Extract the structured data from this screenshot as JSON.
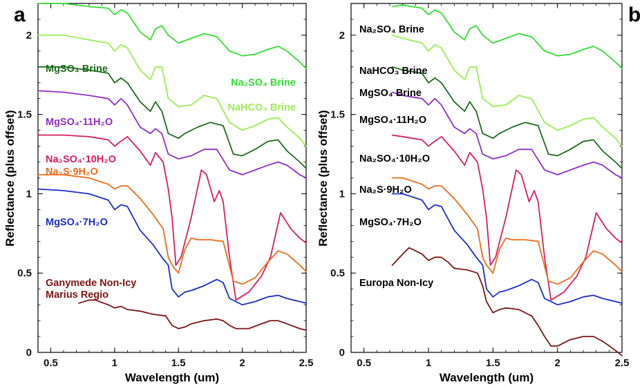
{
  "figure": {
    "panels": [
      "a",
      "b"
    ]
  },
  "chart_data": [
    {
      "type": "line",
      "panel_label": "a",
      "xlabel": "Wavelength (um)",
      "ylabel": "Reflectance (plus offset)",
      "xlim": [
        0.4,
        2.5
      ],
      "ylim": [
        0,
        2.2
      ],
      "xticks": [
        "0.5",
        "1",
        "1.5",
        "2",
        "2.5"
      ],
      "yticks": [
        "0",
        "0.5",
        "1",
        "1.5",
        "2"
      ],
      "grid": false,
      "series": [
        {
          "name": "Na2SO4 Brine",
          "display": "Na₂SO₄ Brine",
          "color": "#33dd33",
          "x": [
            0.4,
            0.6,
            0.8,
            0.95,
            1.0,
            1.05,
            1.1,
            1.2,
            1.28,
            1.32,
            1.37,
            1.42,
            1.5,
            1.6,
            1.7,
            1.8,
            1.9,
            2.0,
            2.1,
            2.2,
            2.28,
            2.35,
            2.45,
            2.5
          ],
          "y": [
            2.2,
            2.2,
            2.18,
            2.17,
            2.13,
            2.16,
            2.14,
            2.02,
            1.97,
            2.04,
            2.06,
            2.0,
            1.95,
            1.98,
            2.01,
            1.99,
            1.9,
            1.87,
            1.88,
            1.91,
            1.93,
            1.9,
            1.83,
            1.79
          ]
        },
        {
          "name": "NaHCO3 Brine",
          "display": "NaHCO₃ Brine",
          "color": "#99ee55",
          "x": [
            0.4,
            0.6,
            0.8,
            0.95,
            1.0,
            1.05,
            1.1,
            1.2,
            1.28,
            1.32,
            1.37,
            1.42,
            1.5,
            1.6,
            1.7,
            1.8,
            1.9,
            2.0,
            2.1,
            2.2,
            2.28,
            2.35,
            2.45,
            2.5
          ],
          "y": [
            2.0,
            2.0,
            1.97,
            1.95,
            1.9,
            1.94,
            1.92,
            1.78,
            1.72,
            1.8,
            1.8,
            1.6,
            1.55,
            1.56,
            1.62,
            1.6,
            1.45,
            1.4,
            1.43,
            1.47,
            1.48,
            1.42,
            1.35,
            1.3
          ]
        },
        {
          "name": "MgSO4 Brine",
          "display": "MgSO₄ Brine",
          "color": "#1e6b1e",
          "x": [
            0.4,
            0.6,
            0.8,
            0.95,
            1.0,
            1.05,
            1.1,
            1.2,
            1.28,
            1.32,
            1.37,
            1.42,
            1.5,
            1.55,
            1.65,
            1.75,
            1.85,
            1.93,
            2.0,
            2.1,
            2.2,
            2.28,
            2.35,
            2.45,
            2.5
          ],
          "y": [
            1.8,
            1.8,
            1.78,
            1.76,
            1.7,
            1.73,
            1.7,
            1.58,
            1.52,
            1.58,
            1.52,
            1.38,
            1.35,
            1.38,
            1.42,
            1.45,
            1.43,
            1.25,
            1.24,
            1.28,
            1.33,
            1.34,
            1.27,
            1.2,
            1.16
          ]
        },
        {
          "name": "MgSO4·11H2O",
          "display": "MgSO₄·11H₂O",
          "color": "#8e2fc8",
          "x": [
            0.4,
            0.6,
            0.8,
            0.95,
            1.0,
            1.05,
            1.1,
            1.2,
            1.28,
            1.32,
            1.37,
            1.42,
            1.5,
            1.6,
            1.7,
            1.8,
            1.9,
            2.0,
            2.1,
            2.2,
            2.28,
            2.35,
            2.45,
            2.5
          ],
          "y": [
            1.65,
            1.64,
            1.62,
            1.6,
            1.56,
            1.6,
            1.56,
            1.42,
            1.38,
            1.41,
            1.38,
            1.25,
            1.22,
            1.24,
            1.28,
            1.28,
            1.15,
            1.12,
            1.15,
            1.18,
            1.2,
            1.18,
            1.12,
            1.1
          ]
        },
        {
          "name": "Na2SO4·10H2O",
          "display": "Na₂SO₄·10H₂O",
          "color": "#d61d5e",
          "x": [
            0.4,
            0.6,
            0.8,
            0.95,
            1.0,
            1.03,
            1.1,
            1.2,
            1.28,
            1.32,
            1.38,
            1.42,
            1.45,
            1.48,
            1.52,
            1.6,
            1.68,
            1.72,
            1.78,
            1.82,
            1.85,
            1.9,
            1.95,
            2.05,
            2.15,
            2.22,
            2.3,
            2.38,
            2.45,
            2.5
          ],
          "y": [
            1.37,
            1.37,
            1.36,
            1.34,
            1.3,
            1.32,
            1.36,
            1.27,
            1.18,
            1.26,
            1.2,
            1.03,
            0.85,
            0.55,
            0.6,
            0.85,
            1.15,
            1.12,
            0.95,
            1.02,
            0.95,
            0.6,
            0.33,
            0.38,
            0.48,
            0.6,
            0.88,
            0.78,
            0.72,
            0.69
          ]
        },
        {
          "name": "Na2S·9H2O",
          "display": "Na₂S·9H₂O",
          "color": "#ee6a1a",
          "x": [
            0.4,
            0.6,
            0.8,
            0.95,
            1.0,
            1.05,
            1.1,
            1.2,
            1.3,
            1.38,
            1.42,
            1.45,
            1.5,
            1.55,
            1.6,
            1.65,
            1.75,
            1.85,
            1.93,
            2.0,
            2.1,
            2.2,
            2.28,
            2.35,
            2.45,
            2.5
          ],
          "y": [
            1.12,
            1.12,
            1.1,
            1.06,
            1.03,
            1.05,
            1.05,
            0.97,
            0.87,
            0.78,
            0.6,
            0.55,
            0.5,
            0.65,
            0.72,
            0.71,
            0.71,
            0.7,
            0.45,
            0.43,
            0.47,
            0.57,
            0.64,
            0.62,
            0.55,
            0.51
          ]
        },
        {
          "name": "MgSO4·7H2O",
          "display": "MgSO₄·7H₂O",
          "color": "#1d2ccc",
          "x": [
            0.4,
            0.6,
            0.8,
            0.95,
            1.0,
            1.05,
            1.1,
            1.2,
            1.3,
            1.37,
            1.42,
            1.45,
            1.5,
            1.55,
            1.6,
            1.7,
            1.8,
            1.85,
            1.9,
            2.0,
            2.1,
            2.2,
            2.28,
            2.35,
            2.45,
            2.5
          ],
          "y": [
            1.03,
            1.02,
            1.0,
            0.96,
            0.9,
            0.93,
            0.92,
            0.77,
            0.68,
            0.6,
            0.55,
            0.4,
            0.35,
            0.38,
            0.39,
            0.42,
            0.46,
            0.44,
            0.34,
            0.3,
            0.32,
            0.35,
            0.36,
            0.34,
            0.32,
            0.31
          ]
        },
        {
          "name": "Ganymede Non-Icy Marius Regio",
          "display_lines": [
            "Ganymede Non-Icy",
            "Marius Regio"
          ],
          "color": "#7a1515",
          "x": [
            0.72,
            0.8,
            0.85,
            0.95,
            1.0,
            1.05,
            1.1,
            1.2,
            1.3,
            1.4,
            1.45,
            1.5,
            1.55,
            1.6,
            1.7,
            1.8,
            1.85,
            1.9,
            1.95,
            2.05,
            2.15,
            2.22,
            2.28,
            2.35,
            2.45,
            2.5
          ],
          "y": [
            0.31,
            0.33,
            0.33,
            0.3,
            0.28,
            0.29,
            0.27,
            0.26,
            0.24,
            0.23,
            0.17,
            0.15,
            0.16,
            0.18,
            0.2,
            0.21,
            0.2,
            0.17,
            0.15,
            0.15,
            0.18,
            0.2,
            0.2,
            0.18,
            0.15,
            0.14
          ]
        }
      ]
    },
    {
      "type": "line",
      "panel_label": "b",
      "xlabel": "Wavelength (um)",
      "ylabel": "Reflectance (plus offset)",
      "xlim": [
        0.4,
        2.5
      ],
      "ylim": [
        0,
        2.2
      ],
      "xticks": [
        "0.5",
        "1",
        "1.5",
        "2",
        "2.5"
      ],
      "yticks": [
        "0",
        "0.5",
        "1",
        "1.5",
        "2"
      ],
      "grid": false,
      "series": [
        {
          "name": "Na2SO4 Brine",
          "display": "Na₂SO₄ Brine",
          "color": "#33dd33",
          "x": [
            0.72,
            0.8,
            0.95,
            1.0,
            1.05,
            1.1,
            1.2,
            1.28,
            1.32,
            1.37,
            1.42,
            1.5,
            1.6,
            1.7,
            1.8,
            1.9,
            2.0,
            2.1,
            2.2,
            2.28,
            2.35,
            2.45,
            2.5
          ],
          "y": [
            2.18,
            2.19,
            2.17,
            2.13,
            2.16,
            2.14,
            2.02,
            1.97,
            2.04,
            2.06,
            2.0,
            1.95,
            1.98,
            2.01,
            1.99,
            1.9,
            1.87,
            1.88,
            1.91,
            1.93,
            1.9,
            1.83,
            1.79
          ]
        },
        {
          "name": "NaHCO3 Brine",
          "display": "NaHCO₃ Brine",
          "color": "#99ee55",
          "x": [
            0.72,
            0.8,
            0.95,
            1.0,
            1.05,
            1.1,
            1.2,
            1.28,
            1.32,
            1.37,
            1.42,
            1.5,
            1.6,
            1.7,
            1.8,
            1.9,
            2.0,
            2.1,
            2.2,
            2.28,
            2.35,
            2.45,
            2.5
          ],
          "y": [
            2.0,
            1.98,
            1.95,
            1.9,
            1.94,
            1.92,
            1.78,
            1.72,
            1.8,
            1.8,
            1.6,
            1.55,
            1.56,
            1.62,
            1.6,
            1.45,
            1.4,
            1.43,
            1.47,
            1.48,
            1.42,
            1.35,
            1.3
          ]
        },
        {
          "name": "MgSO4 Brine",
          "display": "MgSO₄ Brine",
          "color": "#1e6b1e",
          "x": [
            0.72,
            0.8,
            0.95,
            1.0,
            1.05,
            1.1,
            1.2,
            1.28,
            1.32,
            1.37,
            1.42,
            1.5,
            1.55,
            1.65,
            1.75,
            1.85,
            1.93,
            2.0,
            2.1,
            2.2,
            2.28,
            2.35,
            2.45,
            2.5
          ],
          "y": [
            1.8,
            1.78,
            1.76,
            1.7,
            1.73,
            1.7,
            1.58,
            1.52,
            1.58,
            1.52,
            1.38,
            1.35,
            1.38,
            1.42,
            1.45,
            1.43,
            1.25,
            1.24,
            1.28,
            1.33,
            1.34,
            1.27,
            1.2,
            1.16
          ]
        },
        {
          "name": "MgSO4·11H2O",
          "display": "MgSO₄·11H₂O",
          "color": "#8e2fc8",
          "x": [
            0.72,
            0.8,
            0.95,
            1.0,
            1.05,
            1.1,
            1.2,
            1.28,
            1.32,
            1.37,
            1.42,
            1.5,
            1.6,
            1.7,
            1.8,
            1.9,
            2.0,
            2.1,
            2.2,
            2.28,
            2.35,
            2.45,
            2.5
          ],
          "y": [
            1.64,
            1.62,
            1.6,
            1.56,
            1.6,
            1.56,
            1.42,
            1.38,
            1.41,
            1.38,
            1.25,
            1.22,
            1.24,
            1.28,
            1.28,
            1.15,
            1.12,
            1.15,
            1.18,
            1.2,
            1.18,
            1.12,
            1.1
          ]
        },
        {
          "name": "Na2SO4·10H2O",
          "display": "Na₂SO₄·10H₂O",
          "color": "#d61d5e",
          "x": [
            0.72,
            0.8,
            0.95,
            1.0,
            1.03,
            1.1,
            1.2,
            1.28,
            1.32,
            1.38,
            1.42,
            1.45,
            1.48,
            1.52,
            1.6,
            1.68,
            1.72,
            1.78,
            1.82,
            1.85,
            1.9,
            1.95,
            2.05,
            2.15,
            2.22,
            2.3,
            2.38,
            2.45,
            2.5
          ],
          "y": [
            1.37,
            1.36,
            1.34,
            1.3,
            1.32,
            1.36,
            1.27,
            1.18,
            1.26,
            1.2,
            1.03,
            0.85,
            0.55,
            0.6,
            0.85,
            1.15,
            1.12,
            0.95,
            1.02,
            0.95,
            0.6,
            0.33,
            0.38,
            0.48,
            0.6,
            0.88,
            0.78,
            0.72,
            0.69
          ]
        },
        {
          "name": "Na2S·9H2O",
          "display": "Na₂S·9H₂O",
          "color": "#ee6a1a",
          "x": [
            0.72,
            0.8,
            0.95,
            1.0,
            1.05,
            1.1,
            1.2,
            1.3,
            1.38,
            1.42,
            1.45,
            1.5,
            1.55,
            1.6,
            1.65,
            1.75,
            1.85,
            1.93,
            2.0,
            2.1,
            2.2,
            2.28,
            2.35,
            2.45,
            2.5
          ],
          "y": [
            1.1,
            1.1,
            1.06,
            1.03,
            1.05,
            1.05,
            0.97,
            0.87,
            0.78,
            0.6,
            0.55,
            0.5,
            0.65,
            0.72,
            0.71,
            0.71,
            0.7,
            0.45,
            0.43,
            0.47,
            0.57,
            0.64,
            0.62,
            0.55,
            0.51
          ]
        },
        {
          "name": "MgSO4·7H2O",
          "display": "MgSO₄·7H₂O",
          "color": "#1d2ccc",
          "x": [
            0.72,
            0.8,
            0.95,
            1.0,
            1.05,
            1.1,
            1.2,
            1.3,
            1.37,
            1.42,
            1.45,
            1.5,
            1.55,
            1.6,
            1.7,
            1.8,
            1.85,
            1.9,
            2.0,
            2.1,
            2.2,
            2.28,
            2.35,
            2.45,
            2.5
          ],
          "y": [
            1.0,
            1.0,
            0.96,
            0.9,
            0.93,
            0.92,
            0.77,
            0.68,
            0.6,
            0.55,
            0.4,
            0.35,
            0.38,
            0.39,
            0.42,
            0.46,
            0.44,
            0.34,
            0.3,
            0.32,
            0.35,
            0.36,
            0.34,
            0.32,
            0.31
          ]
        },
        {
          "name": "Europa Non-Icy",
          "display": "Europa  Non-Icy",
          "color": "#7a1515",
          "x": [
            0.72,
            0.8,
            0.85,
            0.9,
            0.95,
            1.0,
            1.05,
            1.1,
            1.15,
            1.2,
            1.3,
            1.38,
            1.42,
            1.45,
            1.5,
            1.55,
            1.6,
            1.7,
            1.8,
            1.85,
            1.9,
            1.95,
            2.0,
            2.1,
            2.2,
            2.28,
            2.35,
            2.42,
            2.5
          ],
          "y": [
            0.55,
            0.62,
            0.66,
            0.64,
            0.62,
            0.58,
            0.6,
            0.6,
            0.57,
            0.53,
            0.52,
            0.5,
            0.42,
            0.32,
            0.25,
            0.27,
            0.28,
            0.27,
            0.23,
            0.17,
            0.1,
            0.04,
            0.04,
            0.08,
            0.1,
            0.1,
            0.07,
            0.03,
            -0.02
          ]
        }
      ]
    }
  ]
}
